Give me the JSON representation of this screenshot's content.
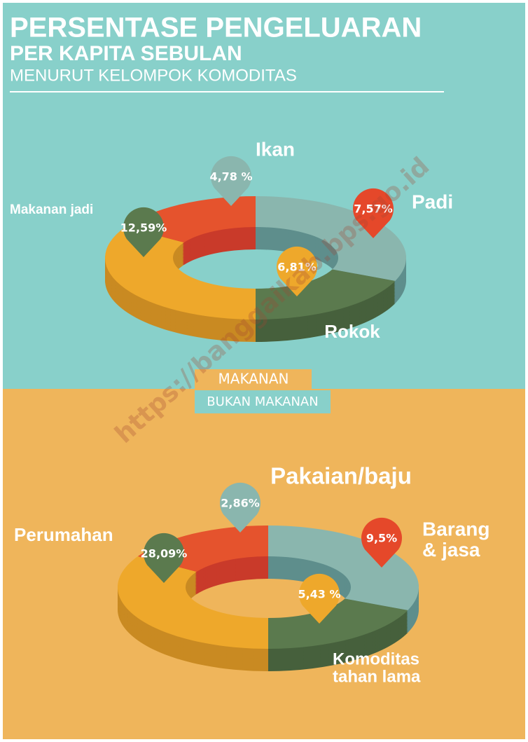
{
  "header": {
    "title": "PERSENTASE PENGELUARAN",
    "subtitle": "PER KAPITA SEBULAN",
    "caption": "MENURUT KELOMPOK KOMODITAS"
  },
  "legend": [
    "MAKANAN",
    "BUKAN MAKANAN"
  ],
  "watermark": "https://banggaikab.bps.go.id",
  "charts": [
    {
      "items": [
        {
          "name": [
            "Ikan"
          ],
          "value_label": "4,78 %"
        },
        {
          "name": [
            "Padi"
          ],
          "value_label": "7,57%"
        },
        {
          "name": [
            "Makanan jadi"
          ],
          "value_label": "12,59%"
        },
        {
          "name": [
            "Rokok"
          ],
          "value_label": "6,81%"
        }
      ]
    },
    {
      "items": [
        {
          "name": [
            "Pakaian/baju"
          ],
          "value_label": "2,86%"
        },
        {
          "name": [
            "Barang",
            "& jasa"
          ],
          "value_label": "9,5%"
        },
        {
          "name": [
            "Perumahan"
          ],
          "value_label": "28,09%"
        },
        {
          "name": [
            "Komoditas",
            "tahan lama"
          ],
          "value_label": "5,43 %"
        }
      ]
    }
  ]
}
